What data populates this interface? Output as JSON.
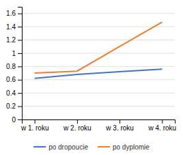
{
  "chart_data": {
    "type": "line",
    "categories": [
      "w 1. roku",
      "w 2. roku",
      "w 3. roku",
      "w 4. roku"
    ],
    "series": [
      {
        "name": "po dropoucie",
        "color": "#4472c4",
        "values": [
          0.62,
          0.68,
          0.72,
          0.76
        ]
      },
      {
        "name": "po dyplomie",
        "color": "#ed7d31",
        "values": [
          0.7,
          0.73,
          1.1,
          1.47
        ]
      }
    ],
    "ylim": [
      0,
      1.7
    ],
    "yticks": [
      0,
      0.2,
      0.4,
      0.6,
      0.8,
      1,
      1.2,
      1.4,
      1.6
    ],
    "grid": true,
    "legend": "bottom"
  }
}
